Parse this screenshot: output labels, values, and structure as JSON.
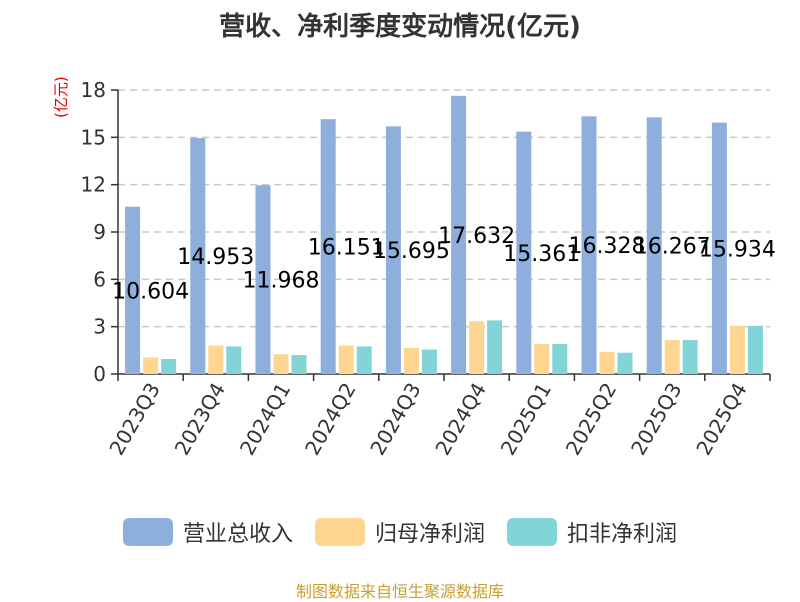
{
  "title": "营收、净利季度变动情况(亿元)",
  "unit": "(亿元)",
  "source": "制图数据来自恒生聚源数据库",
  "colors": {
    "revenue": "#8eaedb",
    "net_profit": "#ffd592",
    "net_profit_excl": "#82d4d6"
  },
  "chart_data": {
    "type": "bar",
    "title": "营收、净利季度变动情况(亿元)",
    "ylabel": "(亿元)",
    "ylim": [
      0,
      18
    ],
    "yticks": [
      0,
      3,
      6,
      9,
      12,
      15,
      18
    ],
    "grid": true,
    "legend_position": "bottom",
    "categories": [
      "2023Q3",
      "2023Q4",
      "2024Q1",
      "2024Q2",
      "2024Q3",
      "2024Q4",
      "2025Q1",
      "2025Q2",
      "2025Q3",
      "2025Q4"
    ],
    "series": [
      {
        "name": "营业总收入",
        "values": [
          10.604,
          14.953,
          11.968,
          16.151,
          15.695,
          17.632,
          15.361,
          16.328,
          16.267,
          15.934
        ]
      },
      {
        "name": "归母净利润",
        "values": [
          1.05,
          1.8,
          1.25,
          1.8,
          1.65,
          3.35,
          1.9,
          1.4,
          2.15,
          3.05
        ]
      },
      {
        "name": "扣非净利润",
        "values": [
          0.95,
          1.75,
          1.2,
          1.75,
          1.55,
          3.4,
          1.9,
          1.35,
          2.15,
          3.05
        ]
      }
    ],
    "data_labels": [
      "10.604",
      "14.953",
      "11.968",
      "16.151",
      "15.695",
      "17.632",
      "15.361",
      "16.328",
      "16.267",
      "15.934"
    ]
  }
}
